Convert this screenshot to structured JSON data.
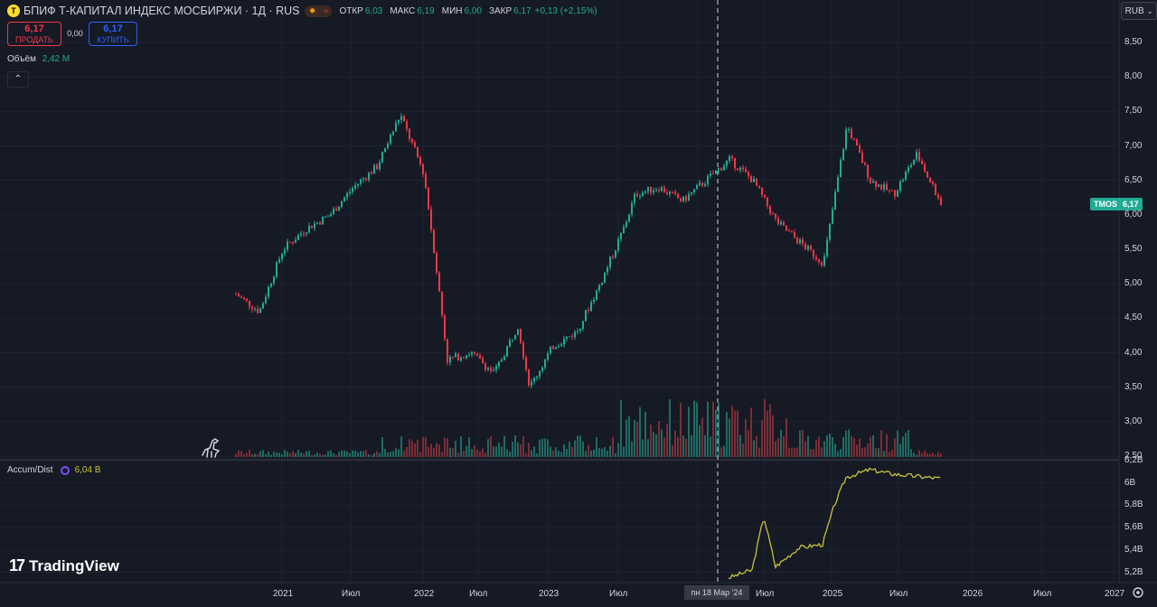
{
  "header": {
    "logo": "T",
    "title": "БПИФ Т-КАПИТАЛ ИНДЕКС МОСБИРЖИ · 1Д · RUS",
    "open_label": "ОТКР",
    "open": "6,03",
    "high_label": "МАКС",
    "high": "6,19",
    "low_label": "МИН",
    "low": "6,00",
    "close_label": "ЗАКР",
    "close": "6,17",
    "change": "+0,13 (+2,15%)",
    "flag_icons": [
      "sun-icon",
      "wave-icon"
    ]
  },
  "trade": {
    "sell_price": "6,17",
    "sell_label": "ПРОДАТЬ",
    "spread": "0,00",
    "buy_price": "6,17",
    "buy_label": "КУПИТЬ"
  },
  "volume": {
    "label": "Объём",
    "value": "2,42 M"
  },
  "collapse_icon": "chevron-up-icon",
  "currency": "RUB",
  "ticker_tag": {
    "symbol": "TMOS",
    "price": "6,17"
  },
  "indicator": {
    "name": "Accum/Dist",
    "value": "6,04 B"
  },
  "crosshair_label": "пн 18 Мар '24",
  "branding": {
    "mark": "17",
    "name": "TradingView"
  },
  "colors": {
    "up": "#22ab94",
    "down": "#f23645",
    "ad_line": "#c9c23a",
    "background": "#161a25",
    "grid": "#1f2330"
  },
  "chart_data": [
    {
      "type": "candlestick",
      "series": [
        {
          "name": "TMOS"
        }
      ],
      "y_ticks": [
        "8,50",
        "8,00",
        "7,50",
        "7,00",
        "6,50",
        "6,00",
        "5,50",
        "5,00",
        "4,50",
        "4,00",
        "3,50",
        "3,00",
        "2,50"
      ],
      "ylim": [
        2.5,
        8.5
      ],
      "x_ticks": [
        "2021",
        "Июл",
        "2022",
        "Июл",
        "2023",
        "Июл",
        "2024",
        "Мар",
        "Июл",
        "2025",
        "Июл",
        "2026",
        "Июл",
        "2027"
      ],
      "x": [
        "2020-09",
        "2020-11",
        "2021-01",
        "2021-03",
        "2021-05",
        "2021-07",
        "2021-09",
        "2021-11",
        "2022-01",
        "2022-02",
        "2022-03",
        "2022-05",
        "2022-07",
        "2022-09",
        "2022-10",
        "2022-12",
        "2023-02",
        "2023-04",
        "2023-06",
        "2023-07",
        "2023-09",
        "2023-11",
        "2024-01",
        "2024-03",
        "2024-05",
        "2024-07",
        "2024-09",
        "2024-11",
        "2024-12",
        "2025-01",
        "2025-03",
        "2025-05",
        "2025-07",
        "2025-08",
        "2025-09"
      ],
      "close": [
        4.85,
        4.6,
        5.5,
        5.8,
        6.0,
        6.4,
        6.7,
        7.45,
        6.6,
        5.3,
        3.9,
        4.0,
        3.7,
        4.4,
        3.5,
        4.1,
        4.3,
        5.0,
        5.8,
        6.3,
        6.4,
        6.2,
        6.5,
        6.8,
        6.5,
        5.9,
        5.6,
        5.3,
        6.3,
        7.3,
        6.5,
        6.3,
        6.9,
        6.5,
        6.17
      ],
      "volume_note": "daily volume bars at bottom of price pane"
    },
    {
      "type": "line",
      "series": [
        {
          "name": "Accum/Dist"
        }
      ],
      "y_ticks": [
        "6,2B",
        "6B",
        "5,8B",
        "5,6B",
        "5,4B",
        "5,2B"
      ],
      "ylim": [
        5.18,
        6.2
      ],
      "x": [
        "2024-03",
        "2024-05",
        "2024-06",
        "2024-07",
        "2024-09",
        "2024-11",
        "2024-12",
        "2025-01",
        "2025-03",
        "2025-05",
        "2025-07",
        "2025-09"
      ],
      "values": [
        5.15,
        5.22,
        5.7,
        5.25,
        5.42,
        5.45,
        5.8,
        6.05,
        6.12,
        6.08,
        6.06,
        6.04
      ]
    }
  ]
}
